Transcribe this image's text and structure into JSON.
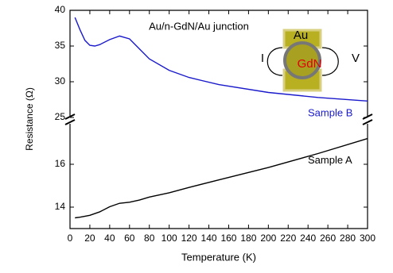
{
  "chart_data": [
    {
      "type": "line",
      "ylabel": "Resistance (Ω)",
      "annotation": "Au/n-GdN/Au junction",
      "inset_labels": {
        "top": "Au",
        "center": "GdN",
        "left": "I",
        "right": "V"
      },
      "xlim": [
        0,
        300
      ],
      "ylim": [
        25,
        40
      ],
      "yticks": [
        25,
        30,
        35,
        40
      ],
      "x": [
        5,
        10,
        15,
        20,
        25,
        30,
        40,
        50,
        60,
        70,
        80,
        100,
        120,
        150,
        200,
        250,
        300
      ],
      "series": [
        {
          "name": "Sample B",
          "color": "#1a1acc",
          "values": [
            39,
            37.3,
            35.8,
            35.1,
            35,
            35.2,
            35.9,
            36.4,
            36,
            34.6,
            33.2,
            31.6,
            30.6,
            29.6,
            28.5,
            27.8,
            27.3
          ]
        }
      ]
    },
    {
      "type": "line",
      "xlabel": "Temperature (K)",
      "xlim": [
        0,
        300
      ],
      "xticks": [
        0,
        20,
        40,
        60,
        80,
        100,
        120,
        140,
        160,
        180,
        200,
        220,
        240,
        260,
        280,
        300
      ],
      "ylim": [
        13,
        18
      ],
      "yticks": [
        14,
        16
      ],
      "x": [
        5,
        10,
        20,
        30,
        40,
        50,
        60,
        70,
        80,
        100,
        120,
        150,
        200,
        250,
        300
      ],
      "series": [
        {
          "name": "Sample A",
          "color": "#000000",
          "values": [
            13.5,
            13.53,
            13.62,
            13.78,
            14.02,
            14.18,
            14.23,
            14.33,
            14.47,
            14.67,
            14.92,
            15.27,
            15.85,
            16.5,
            17.2
          ]
        }
      ]
    }
  ]
}
